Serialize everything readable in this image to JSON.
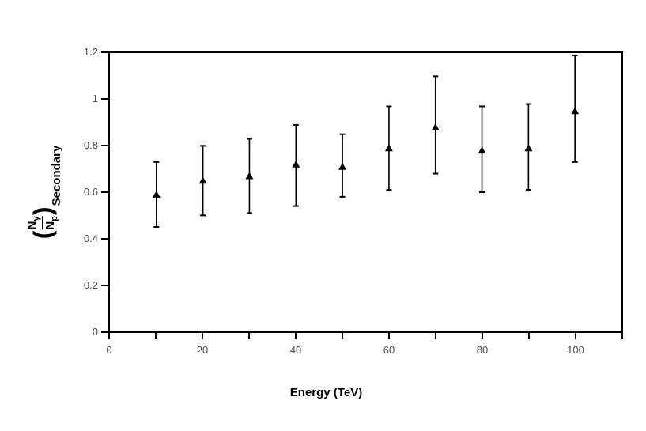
{
  "colors": {
    "background": "#ffffff",
    "axis": "#000000",
    "tick_label": "#4d4d4d",
    "marker": "#000000",
    "error_bar": "#000000"
  },
  "chart_data": {
    "type": "scatter",
    "title": "",
    "xlabel": "Energy (TeV)",
    "ylabel": "(N_gamma / N_p)_Secondary",
    "ylabel_parts": {
      "open_paren": "(",
      "numerator_base": "N",
      "numerator_sub": "γ",
      "denominator_base": "N",
      "denominator_sub": "p",
      "close_paren": ")",
      "outer_subscript": "Secondary"
    },
    "xlim": [
      0,
      110
    ],
    "ylim": [
      0,
      1.2
    ],
    "grid": false,
    "legend": "none",
    "marker": "filled-triangle-up",
    "x_tick_step": 10,
    "x_labeled_ticks": [
      0,
      20,
      40,
      60,
      80,
      100
    ],
    "x_tick_label_strings": [
      "0",
      "20",
      "40",
      "60",
      "80",
      "100"
    ],
    "y_ticks": [
      0,
      0.2,
      0.4,
      0.6,
      0.8,
      1,
      1.2
    ],
    "y_tick_label_strings": [
      "0",
      "0.2",
      "0.4",
      "0.6",
      "0.8",
      "1",
      "1.2"
    ],
    "series": [
      {
        "name": "(Ngamma/Np) Secondary",
        "x": [
          10,
          20,
          30,
          40,
          50,
          60,
          70,
          80,
          90,
          100
        ],
        "y": [
          0.59,
          0.65,
          0.67,
          0.72,
          0.71,
          0.79,
          0.88,
          0.78,
          0.79,
          0.95
        ],
        "y_err_low": [
          0.45,
          0.5,
          0.51,
          0.54,
          0.58,
          0.61,
          0.68,
          0.6,
          0.61,
          0.73
        ],
        "y_err_high": [
          0.73,
          0.8,
          0.83,
          0.89,
          0.85,
          0.97,
          1.1,
          0.97,
          0.98,
          1.19
        ]
      }
    ]
  }
}
